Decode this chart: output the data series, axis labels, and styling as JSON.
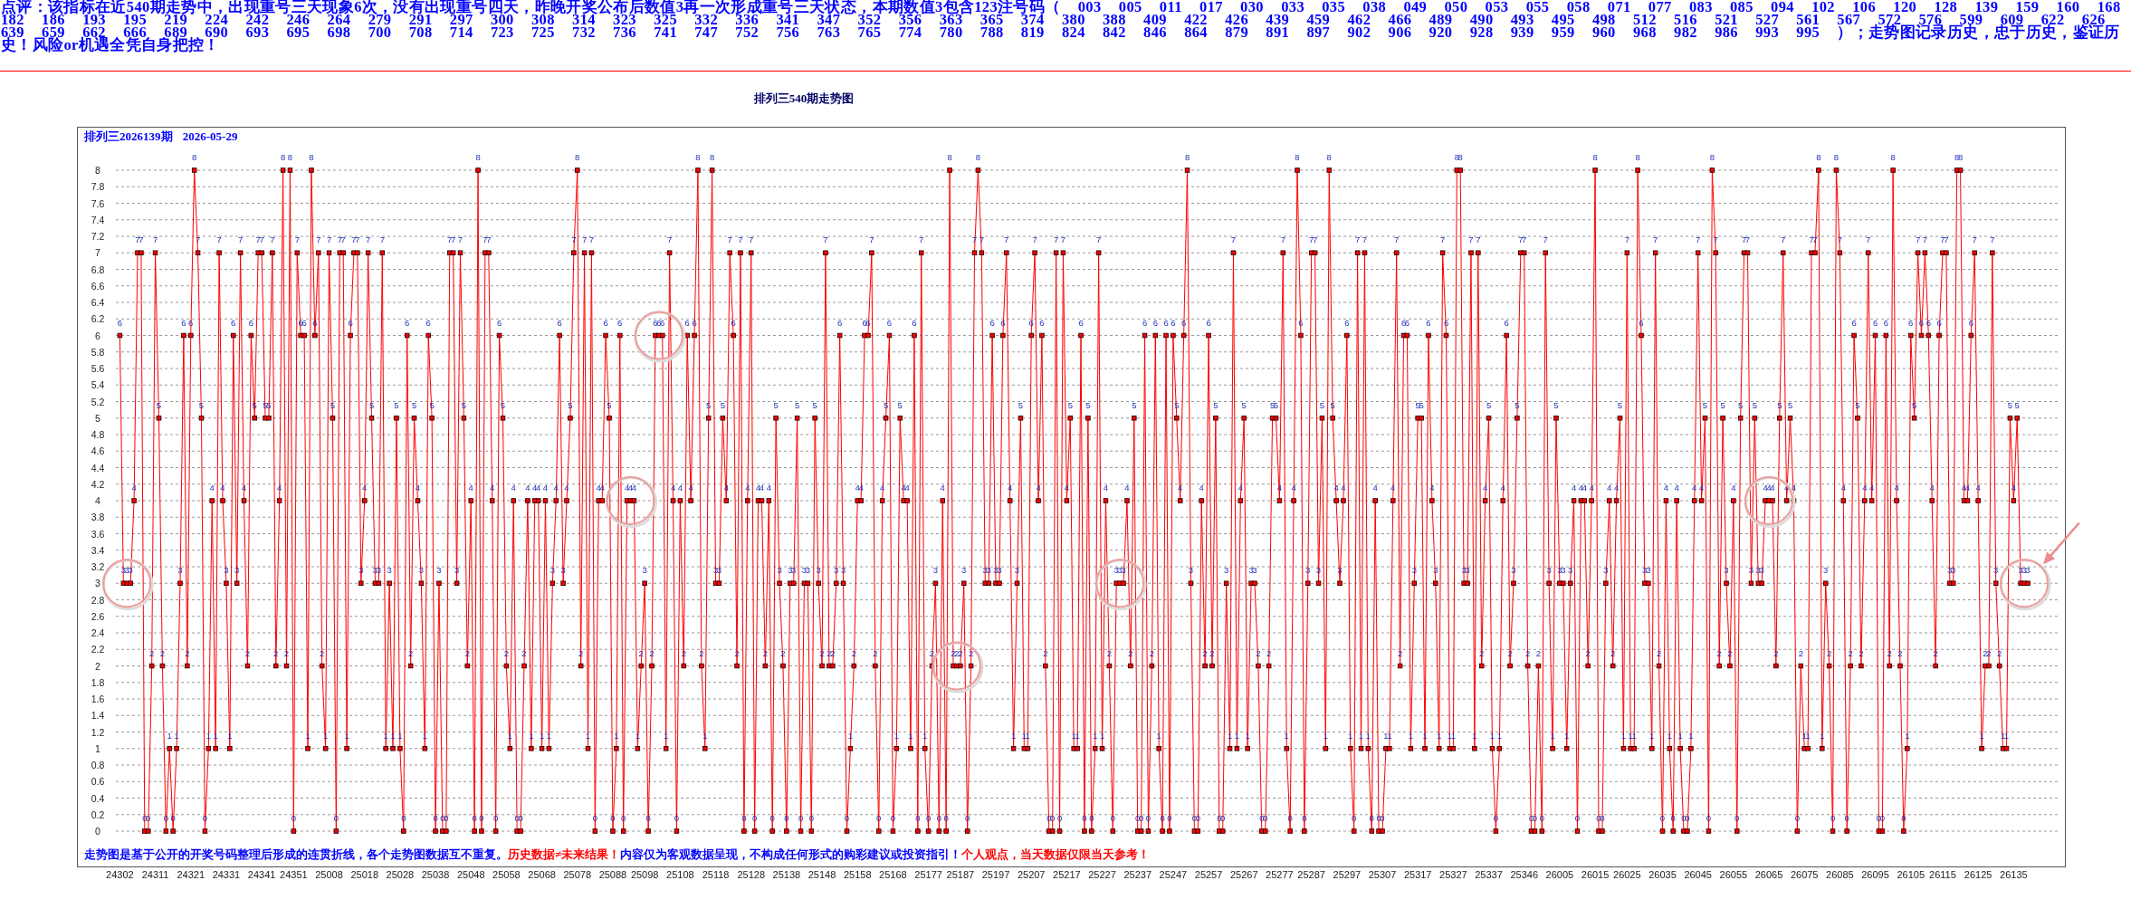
{
  "chart_data": {
    "type": "line",
    "title": "排列三540期走势图",
    "subtitle": "排列三2026139期 2026-05-29",
    "annotations": [
      "点评：该指标在近540期走势中，出现重号三天现象6次，没有出现重号四天，昨晚开奖公布后数值3再一次形成重号三天状态，本期数值3包含123注号码（ 003 005 011 017 030 033 035 038 049 050 053 055 058 071 077 083 085 094 102 106 120 128 139 159 160 168 182 186 193 195 219 224 242 246 264 279 291 297 300 308 314 323 325 332 336 341 347 352 356 363 365 374 380 388 409 422 426 439 459 462 466 489 490 493 495 498 512 516 521 527 561 567 572 576 599 609 622 626 639 659 662 666 689 690 693 695 698 700 708 714 723 725 732 736 741 747 752 756 763 765 774 780 788 819 824 842 846 864 879 891 897 902 906 920 928 939 959 960 968 982 986 993 995 ）；走势图记录历史，忠于历史，鉴证历史！风险or机遇全凭自身把控！",
      "走势图是基于公开的开奖号码整理后形成的连贯折线，各个走势图数据互不重复。",
      "历史数据≠未来结果！",
      "内容仅为客观数据呈现，不构成任何形式的购彩建议或投资指引！",
      "个人观点，当天数据仅限当天参考！"
    ],
    "categories": [
      "24302",
      null,
      null,
      null,
      null,
      null,
      null,
      null,
      null,
      null,
      "24311",
      null,
      null,
      null,
      null,
      null,
      null,
      null,
      null,
      null,
      "24321",
      null,
      null,
      null,
      null,
      null,
      null,
      null,
      null,
      null,
      "24331",
      null,
      null,
      null,
      null,
      null,
      null,
      null,
      null,
      null,
      "24341",
      null,
      null,
      null,
      null,
      null,
      null,
      null,
      null,
      "24351",
      null,
      null,
      null,
      null,
      null,
      null,
      null,
      null,
      null,
      "25008",
      null,
      null,
      null,
      null,
      null,
      null,
      null,
      null,
      null,
      "25018",
      null,
      null,
      null,
      null,
      null,
      null,
      null,
      null,
      null,
      "25028",
      null,
      null,
      null,
      null,
      null,
      null,
      null,
      null,
      null,
      "25038",
      null,
      null,
      null,
      null,
      null,
      null,
      null,
      null,
      null,
      "25048",
      null,
      null,
      null,
      null,
      null,
      null,
      null,
      null,
      null,
      "25058",
      null,
      null,
      null,
      null,
      null,
      null,
      null,
      null,
      null,
      "25068",
      null,
      null,
      null,
      null,
      null,
      null,
      null,
      null,
      null,
      "25078",
      null,
      null,
      null,
      null,
      null,
      null,
      null,
      null,
      null,
      "25088",
      null,
      null,
      null,
      null,
      null,
      null,
      null,
      null,
      "25098",
      null,
      null,
      null,
      null,
      null,
      null,
      null,
      null,
      null,
      "25108",
      null,
      null,
      null,
      null,
      null,
      null,
      null,
      null,
      null,
      "25118",
      null,
      null,
      null,
      null,
      null,
      null,
      null,
      null,
      null,
      "25128",
      null,
      null,
      null,
      null,
      null,
      null,
      null,
      null,
      null,
      "25138",
      null,
      null,
      null,
      null,
      null,
      null,
      null,
      null,
      null,
      "25148",
      null,
      null,
      null,
      null,
      null,
      null,
      null,
      null,
      null,
      "25158",
      null,
      null,
      null,
      null,
      null,
      null,
      null,
      null,
      null,
      "25168",
      null,
      null,
      null,
      null,
      null,
      null,
      null,
      null,
      null,
      "25177",
      null,
      null,
      null,
      null,
      null,
      null,
      null,
      null,
      "25187",
      null,
      null,
      null,
      null,
      null,
      null,
      null,
      null,
      null,
      "25197",
      null,
      null,
      null,
      null,
      null,
      null,
      null,
      null,
      null,
      "25207",
      null,
      null,
      null,
      null,
      null,
      null,
      null,
      null,
      null,
      "25217",
      null,
      null,
      null,
      null,
      null,
      null,
      null,
      null,
      null,
      "25227",
      null,
      null,
      null,
      null,
      null,
      null,
      null,
      null,
      null,
      "25237",
      null,
      null,
      null,
      null,
      null,
      null,
      null,
      null,
      null,
      "25247",
      null,
      null,
      null,
      null,
      null,
      null,
      null,
      null,
      null,
      "25257",
      null,
      null,
      null,
      null,
      null,
      null,
      null,
      null,
      null,
      "25267",
      null,
      null,
      null,
      null,
      null,
      null,
      null,
      null,
      null,
      "25277",
      null,
      null,
      null,
      null,
      null,
      null,
      null,
      null,
      "25287",
      null,
      null,
      null,
      null,
      null,
      null,
      null,
      null,
      null,
      "25297",
      null,
      null,
      null,
      null,
      null,
      null,
      null,
      null,
      null,
      "25307",
      null,
      null,
      null,
      null,
      null,
      null,
      null,
      null,
      null,
      "25317",
      null,
      null,
      null,
      null,
      null,
      null,
      null,
      null,
      null,
      "25327",
      null,
      null,
      null,
      null,
      null,
      null,
      null,
      null,
      null,
      "25337",
      null,
      null,
      null,
      null,
      null,
      null,
      null,
      null,
      null,
      "25346",
      null,
      null,
      null,
      null,
      null,
      null,
      null,
      null,
      null,
      "26005",
      null,
      null,
      null,
      null,
      null,
      null,
      null,
      null,
      null,
      "26015",
      null,
      null,
      null,
      null,
      null,
      null,
      null,
      null,
      "26025",
      null,
      null,
      null,
      null,
      null,
      null,
      null,
      null,
      null,
      "26035",
      null,
      null,
      null,
      null,
      null,
      null,
      null,
      null,
      null,
      "26045",
      null,
      null,
      null,
      null,
      null,
      null,
      null,
      null,
      null,
      "26055",
      null,
      null,
      null,
      null,
      null,
      null,
      null,
      null,
      null,
      "26065",
      null,
      null,
      null,
      null,
      null,
      null,
      null,
      null,
      null,
      "26075",
      null,
      null,
      null,
      null,
      null,
      null,
      null,
      null,
      null,
      "26085",
      null,
      null,
      null,
      null,
      null,
      null,
      null,
      null,
      null,
      "26095",
      null,
      null,
      null,
      null,
      null,
      null,
      null,
      null,
      null,
      "26105",
      null,
      null,
      null,
      null,
      null,
      null,
      null,
      null,
      "26115",
      null,
      null,
      null,
      null,
      null,
      null,
      null,
      null,
      null,
      "26125",
      null,
      null,
      null,
      null,
      null,
      null,
      null,
      null,
      null,
      "26135",
      null,
      null,
      null,
      null
    ],
    "series": [
      {
        "color": "#ff0000",
        "values": [
          6,
          3,
          3,
          3,
          4,
          7,
          7,
          0,
          0,
          2,
          7,
          5,
          2,
          0,
          1,
          0,
          1,
          3,
          6,
          2,
          6,
          8,
          7,
          5,
          0,
          1,
          4,
          1,
          7,
          4,
          3,
          1,
          6,
          3,
          7,
          4,
          2,
          6,
          5,
          7,
          7,
          5,
          5,
          7,
          2,
          4,
          8,
          2,
          8,
          0,
          7,
          6,
          6,
          1,
          8,
          6,
          7,
          2,
          1,
          7,
          5,
          0,
          7,
          7,
          1,
          6,
          7,
          7,
          3,
          4,
          7,
          5,
          3,
          3,
          7,
          1,
          3,
          1,
          5,
          1,
          0,
          6,
          2,
          5,
          4,
          3,
          1,
          6,
          5,
          0,
          3,
          0,
          0,
          7,
          7,
          3,
          7,
          5,
          2,
          4,
          0,
          8,
          0,
          7,
          7,
          4,
          0,
          6,
          5,
          2,
          1,
          4,
          0,
          0,
          2,
          4,
          1,
          4,
          4,
          1,
          4,
          1,
          3,
          4,
          6,
          3,
          4,
          5,
          7,
          8,
          2,
          7,
          1,
          7,
          0,
          4,
          4,
          6,
          5,
          0,
          1,
          6,
          0,
          4,
          4,
          4,
          1,
          2,
          3,
          0,
          2,
          6,
          6,
          6,
          1,
          7,
          4,
          0,
          4,
          2,
          6,
          4,
          6,
          8,
          2,
          1,
          5,
          8,
          3,
          3,
          5,
          4,
          7,
          6,
          2,
          7,
          0,
          4,
          7,
          0,
          4,
          4,
          2,
          4,
          0,
          5,
          3,
          2,
          0,
          3,
          3,
          5,
          0,
          3,
          3,
          0,
          5,
          3,
          2,
          7,
          2,
          2,
          3,
          6,
          3,
          0,
          1,
          2,
          4,
          4,
          6,
          6,
          7,
          2,
          0,
          4,
          5,
          6,
          0,
          1,
          5,
          4,
          4,
          1,
          6,
          0,
          7,
          1,
          0,
          2,
          3,
          0,
          4,
          0,
          8,
          2,
          2,
          2,
          3,
          0,
          2,
          7,
          8,
          7,
          3,
          3,
          6,
          3,
          3,
          6,
          7,
          4,
          1,
          3,
          5,
          1,
          1,
          6,
          7,
          4,
          6,
          2,
          0,
          0,
          7,
          0,
          7,
          4,
          5,
          1,
          1,
          6,
          0,
          5,
          0,
          1,
          7,
          1,
          4,
          2,
          0,
          3,
          3,
          3,
          4,
          2,
          5,
          0,
          0,
          6,
          0,
          2,
          6,
          1,
          0,
          6,
          0,
          6,
          5,
          4,
          6,
          8,
          3,
          0,
          0,
          4,
          2,
          6,
          2,
          5,
          0,
          0,
          3,
          1,
          7,
          1,
          4,
          5,
          1,
          3,
          3,
          2,
          0,
          0,
          2,
          5,
          5,
          4,
          7,
          1,
          0,
          4,
          8,
          6,
          0,
          3,
          7,
          7,
          3,
          5,
          1,
          8,
          5,
          4,
          3,
          4,
          6,
          1,
          0,
          7,
          1,
          7,
          1,
          0,
          4,
          0,
          0,
          1,
          1,
          4,
          7,
          2,
          6,
          6,
          1,
          3,
          5,
          5,
          1,
          6,
          4,
          3,
          1,
          7,
          6,
          1,
          1,
          8,
          8,
          3,
          3,
          7,
          1,
          7,
          2,
          4,
          5,
          1,
          0,
          1,
          4,
          6,
          2,
          3,
          5,
          7,
          7,
          2,
          0,
          0,
          2,
          0,
          7,
          3,
          1,
          5,
          3,
          3,
          1,
          3,
          4,
          0,
          4,
          4,
          2,
          4,
          8,
          0,
          0,
          3,
          4,
          2,
          4,
          5,
          1,
          7,
          1,
          1,
          8,
          6,
          3,
          3,
          1,
          7,
          2,
          0,
          4,
          1,
          0,
          4,
          1,
          0,
          0,
          1,
          4,
          7,
          4,
          5,
          0,
          8,
          7,
          2,
          5,
          3,
          2,
          4,
          0,
          5,
          7,
          7,
          3,
          5,
          3,
          3,
          4,
          4,
          4,
          2,
          5,
          7,
          4,
          5,
          4,
          0,
          2,
          1,
          1,
          7,
          7,
          8,
          1,
          3,
          2,
          0,
          8,
          7,
          4,
          0,
          2,
          6,
          5,
          2,
          4,
          7,
          4,
          6,
          0,
          0,
          6,
          2,
          8,
          4,
          2,
          0,
          1,
          6,
          5,
          7,
          6,
          7,
          6,
          4,
          2,
          6,
          7,
          7,
          3,
          3,
          8,
          8,
          4,
          4,
          6,
          7,
          4,
          1,
          2,
          2,
          7,
          3,
          2,
          1,
          1,
          5,
          4,
          5,
          3,
          3,
          3
        ]
      }
    ],
    "ylim": [
      0,
      8
    ],
    "yticks": [
      0,
      0.2,
      0.4,
      0.6,
      0.8,
      1,
      1.2,
      1.4,
      1.6,
      1.8,
      2,
      2.2,
      2.4,
      2.6,
      2.8,
      3,
      3.2,
      3.4,
      3.6,
      3.8,
      4,
      4.2,
      4.4,
      4.6,
      4.8,
      5,
      5.2,
      5.4,
      5.6,
      5.8,
      6,
      6.2,
      6.4,
      6.6,
      6.8,
      7,
      7.2,
      7.4,
      7.6,
      7.8,
      8
    ],
    "grid": "y",
    "marker": "square",
    "data_labels": true
  }
}
